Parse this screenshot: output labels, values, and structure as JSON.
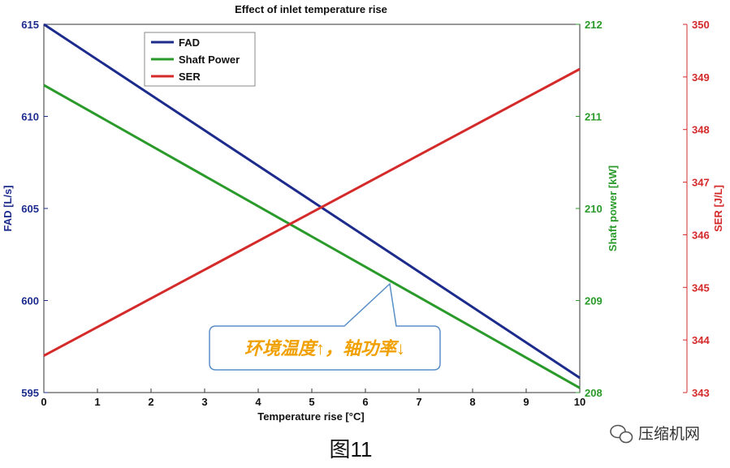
{
  "chart_data": {
    "type": "line",
    "title": "Effect of inlet temperature rise",
    "xlabel": "Temperature rise [°C]",
    "x_ticks": [
      "0",
      "1",
      "2",
      "3",
      "4",
      "5",
      "6",
      "7",
      "8",
      "9",
      "10"
    ],
    "xlim": [
      0,
      10
    ],
    "axes": {
      "left": {
        "label": "FAD [L/s]",
        "ylim": [
          595,
          615
        ],
        "ticks": [
          "595",
          "600",
          "605",
          "610",
          "615"
        ],
        "color": "#1c2b8c"
      },
      "right1": {
        "label": "Shaft power [kW]",
        "ylim": [
          208,
          212
        ],
        "ticks": [
          "208",
          "209",
          "210",
          "211",
          "212"
        ],
        "color": "#2a9a2a"
      },
      "right2": {
        "label": "SER [J/L]",
        "ylim": [
          343,
          350
        ],
        "ticks": [
          "343",
          "344",
          "345",
          "346",
          "347",
          "348",
          "349",
          "350"
        ],
        "color": "#d42a2a"
      }
    },
    "series": [
      {
        "name": "FAD",
        "axis": "left",
        "color": "#1c2b8c",
        "x": [
          0,
          10
        ],
        "y": [
          615.0,
          595.8
        ]
      },
      {
        "name": "Shaft Power",
        "axis": "right1",
        "color": "#2a9a2a",
        "x": [
          0,
          10
        ],
        "y": [
          211.34,
          208.05
        ]
      },
      {
        "name": "SER",
        "axis": "right2",
        "color": "#d42a2a",
        "x": [
          0,
          10
        ],
        "y": [
          343.7,
          349.15
        ]
      }
    ],
    "legend_position": "top-left",
    "grid": false
  },
  "annotation": {
    "text": "环境温度↑，轴功率↓",
    "points_to_x": 6.45
  },
  "caption": "图11",
  "watermark": {
    "text": "压缩机网"
  }
}
